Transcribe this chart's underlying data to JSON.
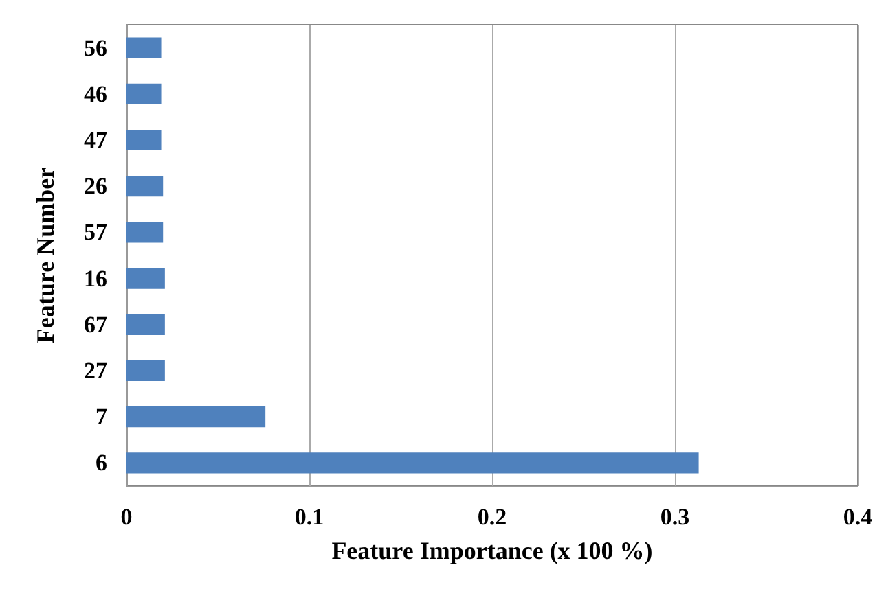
{
  "chart_data": {
    "type": "bar",
    "orientation": "horizontal",
    "xlabel": "Feature Importance (x 100 %)",
    "ylabel": "Feature Number",
    "categories": [
      "56",
      "46",
      "47",
      "26",
      "57",
      "16",
      "67",
      "27",
      "7",
      "6"
    ],
    "values": [
      0.019,
      0.019,
      0.019,
      0.02,
      0.02,
      0.021,
      0.021,
      0.021,
      0.076,
      0.313
    ],
    "color": "#4f81bd",
    "xlim": [
      0,
      0.4
    ],
    "xticks": [
      0,
      0.1,
      0.2,
      0.3,
      0.4
    ],
    "grid": "x"
  }
}
